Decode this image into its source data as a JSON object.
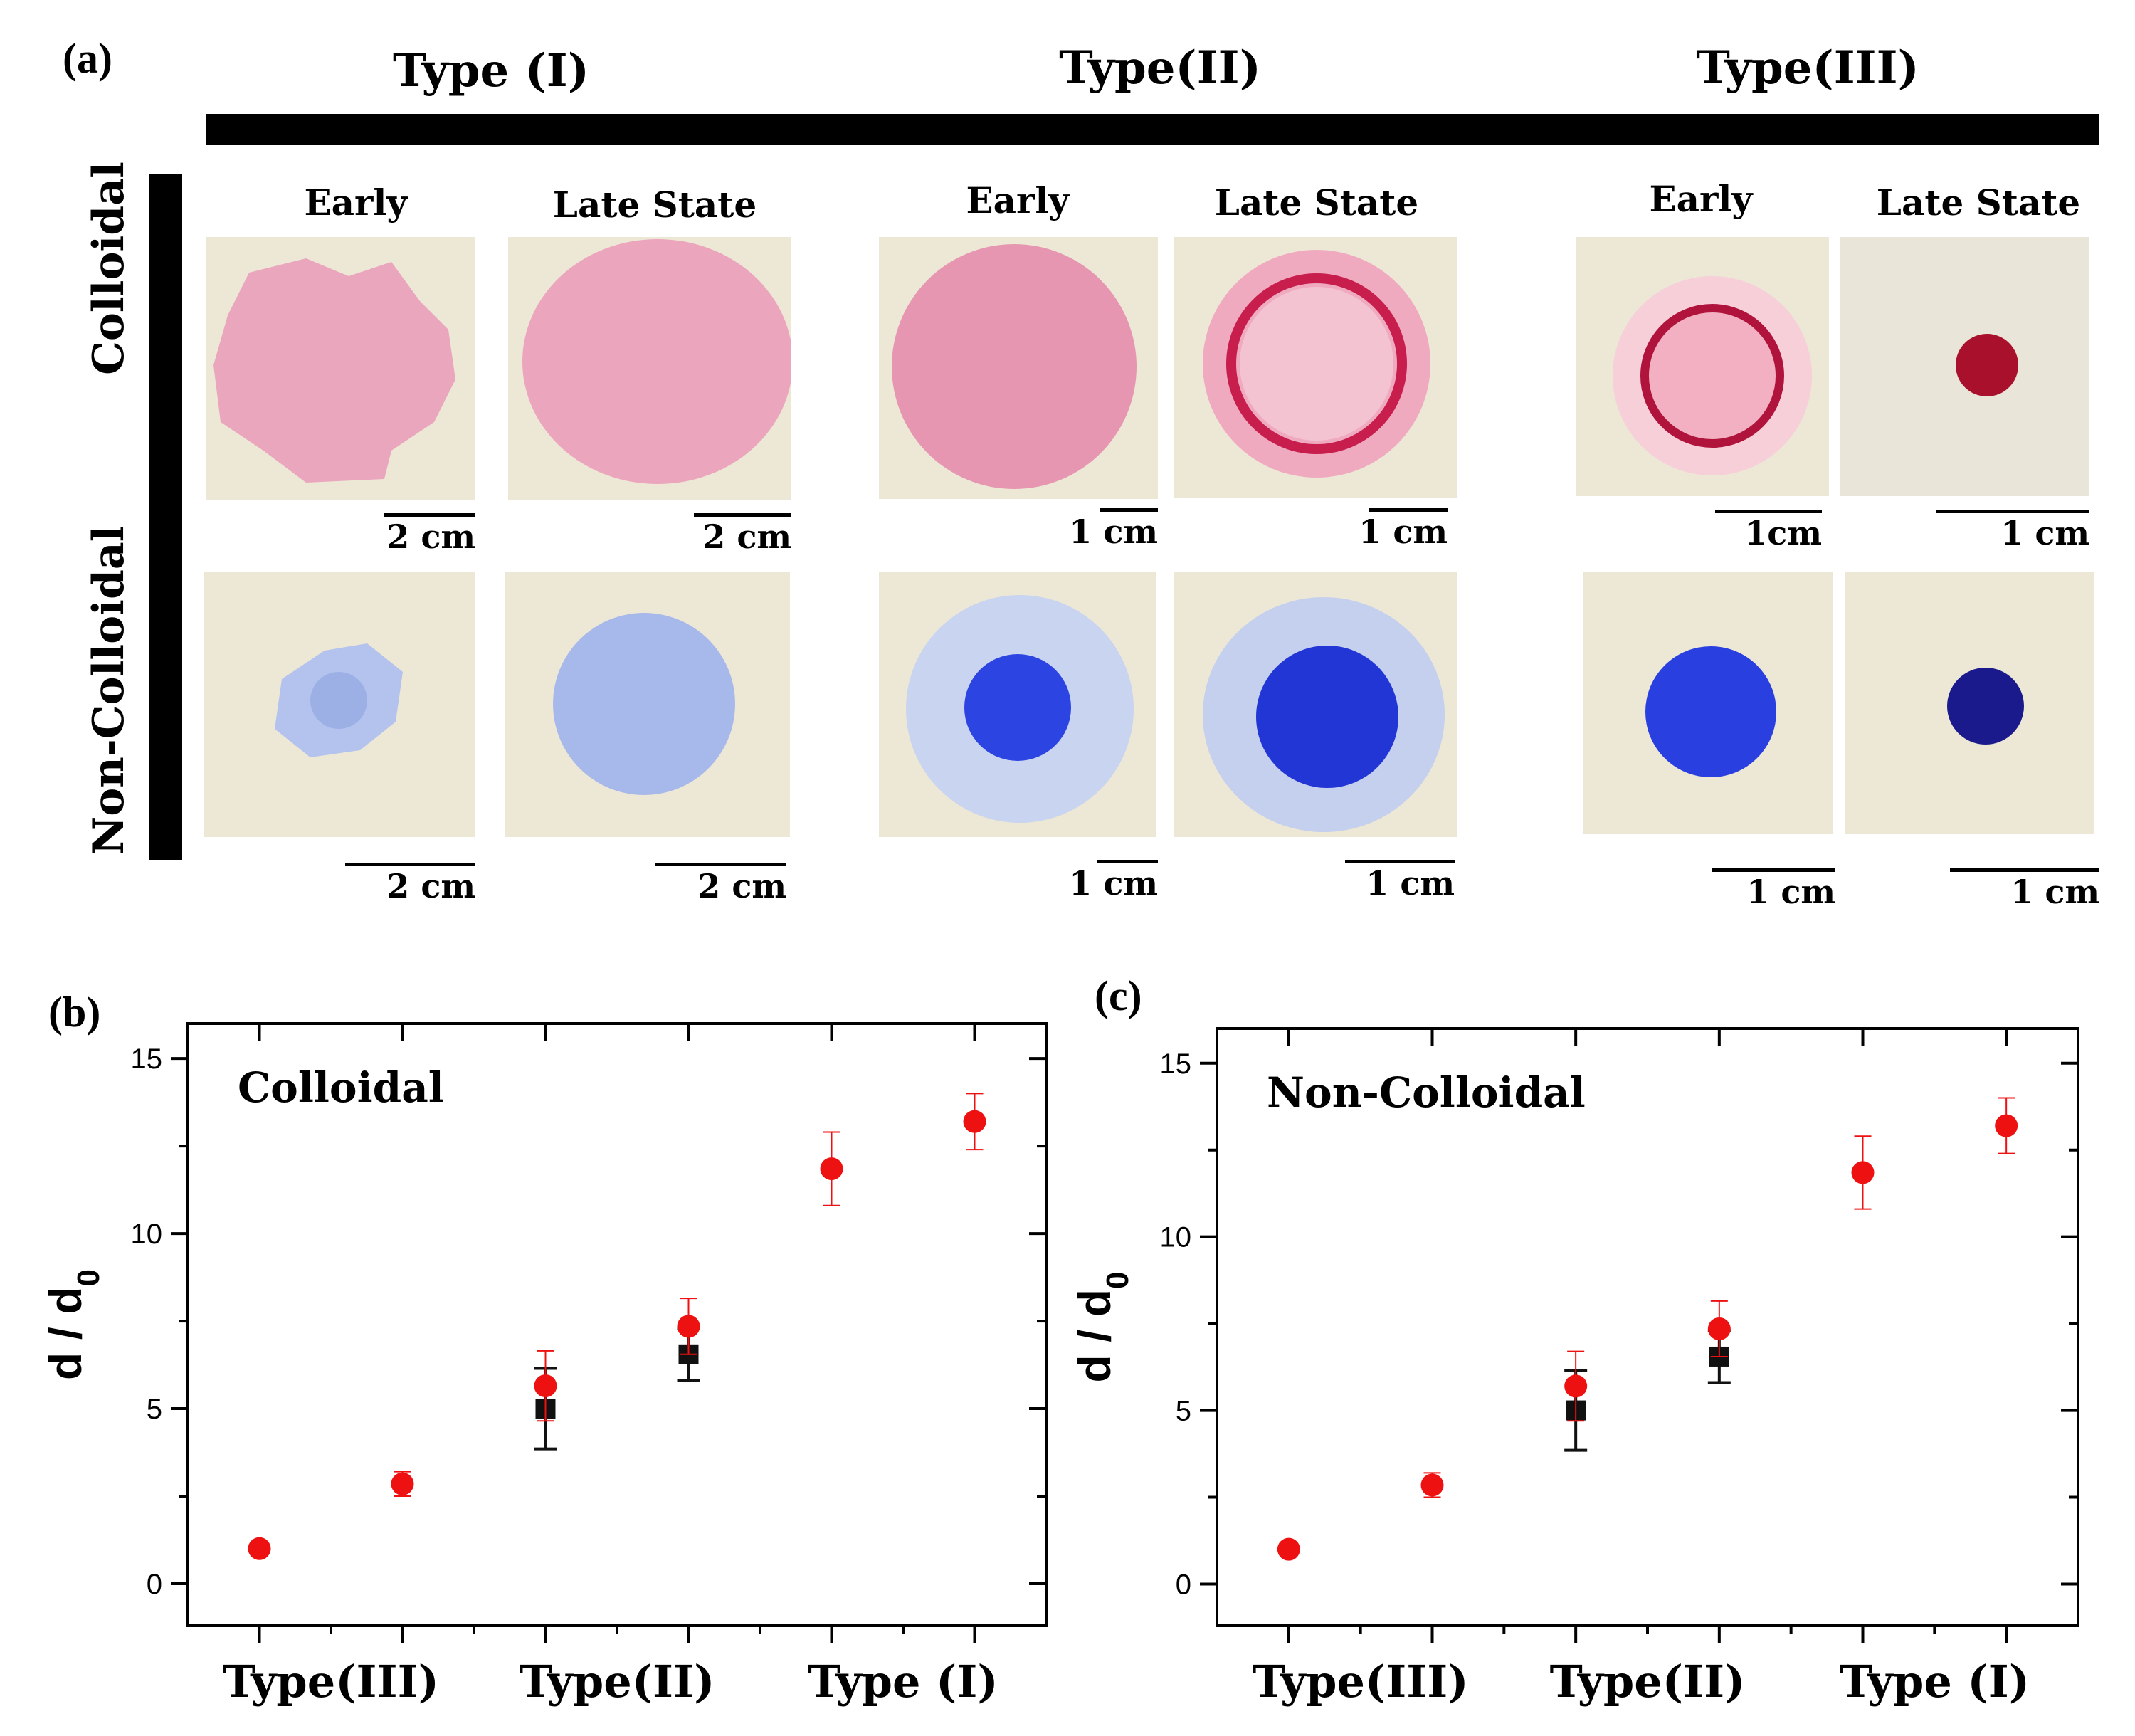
{
  "panel_labels": {
    "a": "(a)",
    "b": "(b)",
    "c": "(c)"
  },
  "type_headers": [
    "Type (I)",
    "Type(II)",
    "Type(III)"
  ],
  "state_labels": {
    "early": "Early",
    "late": "Late State"
  },
  "row_labels": {
    "colloidal": "Colloidal",
    "non_colloidal": "Non-Colloidal"
  },
  "scale_bars": {
    "colloidal": [
      "2 cm",
      "2 cm",
      "1 cm",
      "1 cm",
      "1cm",
      "1 cm"
    ],
    "non_colloidal": [
      "2 cm",
      "2 cm",
      "1 cm",
      "1 cm",
      "1 cm",
      "1 cm"
    ]
  },
  "colors": {
    "colloidal_light": "#eaa2ba",
    "colloidal_dark": "#c81e4e",
    "colloidal_drop": "#a8102c",
    "noncolloidal_light": "#a9bbeb",
    "noncolloidal_dark": "#2a3fe0",
    "noncolloidal_drop": "#1a1a8c",
    "marker_red": "#ee1111",
    "marker_black": "#111111"
  },
  "chart_data": [
    {
      "type": "scatter",
      "title": "Colloidal",
      "xlabel": "",
      "ylabel": "d / d0",
      "ylim": [
        -1.2,
        16.0
      ],
      "yticks": [
        0,
        5,
        10,
        15
      ],
      "xticks": [
        "Type(III)",
        "Type(II)",
        "Type (I)"
      ],
      "series": [
        {
          "name": "red circles",
          "marker": "circle",
          "color": "#ee1111",
          "points": [
            {
              "x": 1,
              "y": 1.0,
              "err": 0.0
            },
            {
              "x": 2,
              "y": 2.85,
              "err": 0.35
            },
            {
              "x": 3,
              "y": 5.65,
              "err": 1.0
            },
            {
              "x": 4,
              "y": 7.35,
              "err": 0.8
            },
            {
              "x": 5,
              "y": 11.85,
              "err": 1.05
            },
            {
              "x": 6,
              "y": 13.2,
              "err": 0.8
            }
          ]
        },
        {
          "name": "black squares",
          "marker": "square",
          "color": "#111111",
          "points": [
            {
              "x": 3,
              "y": 5.0,
              "err": 1.15
            },
            {
              "x": 4,
              "y": 6.55,
              "err": 0.75
            }
          ]
        }
      ]
    },
    {
      "type": "scatter",
      "title": "Non-Colloidal",
      "xlabel": "",
      "ylabel": "d / d0",
      "ylim": [
        -1.2,
        16.0
      ],
      "yticks": [
        0,
        5,
        10,
        15
      ],
      "xticks": [
        "Type(III)",
        "Type(II)",
        "Type (I)"
      ],
      "series": [
        {
          "name": "red circles",
          "marker": "circle",
          "color": "#ee1111",
          "points": [
            {
              "x": 1,
              "y": 1.0,
              "err": 0.0
            },
            {
              "x": 2,
              "y": 2.85,
              "err": 0.35
            },
            {
              "x": 3,
              "y": 5.7,
              "err": 1.0
            },
            {
              "x": 4,
              "y": 7.35,
              "err": 0.8
            },
            {
              "x": 5,
              "y": 11.85,
              "err": 1.05
            },
            {
              "x": 6,
              "y": 13.2,
              "err": 0.8
            }
          ]
        },
        {
          "name": "black squares",
          "marker": "square",
          "color": "#111111",
          "points": [
            {
              "x": 3,
              "y": 5.0,
              "err": 1.15
            },
            {
              "x": 4,
              "y": 6.55,
              "err": 0.75
            }
          ]
        }
      ]
    }
  ]
}
